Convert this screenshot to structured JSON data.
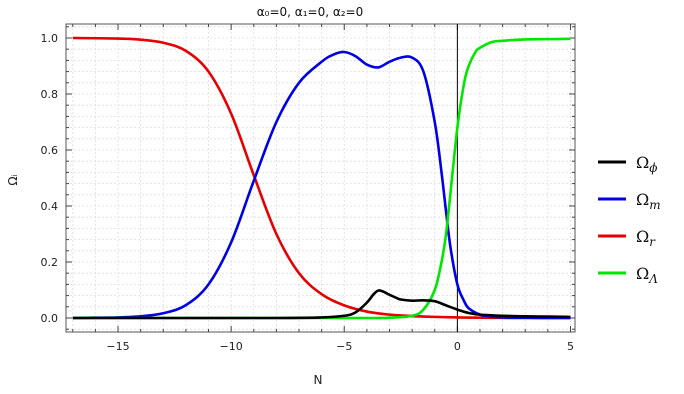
{
  "chart_data": {
    "type": "line",
    "title": "α₀=0, α₁=0, α₂=0",
    "xlabel": "N",
    "ylabel": "Ωᵢ",
    "xlim": [
      -17.3,
      5.2
    ],
    "ylim": [
      -0.05,
      1.05
    ],
    "xticks": [
      -15,
      -10,
      -5,
      0,
      5
    ],
    "xtick_labels": [
      "−15",
      "−10",
      "−5",
      "0",
      "5"
    ],
    "yticks": [
      0.0,
      0.2,
      0.4,
      0.6,
      0.8,
      1.0
    ],
    "ytick_labels": [
      "0.0",
      "0.2",
      "0.4",
      "0.6",
      "0.8",
      "1.0"
    ],
    "grid": true,
    "legend_position": "right",
    "vertical_line_x": 0,
    "series": [
      {
        "name": "Ωφ",
        "label_base": "Ω",
        "label_sub": "ϕ",
        "color": "#000000",
        "x": [
          -17,
          -12,
          -8,
          -6,
          -5,
          -4.5,
          -4,
          -3.7,
          -3.5,
          -3.3,
          -3,
          -2.7,
          -2.5,
          -2,
          -1.5,
          -1,
          -0.5,
          0,
          0.5,
          1,
          2,
          3,
          4,
          5
        ],
        "y": [
          0,
          0,
          0,
          0.002,
          0.008,
          0.02,
          0.055,
          0.085,
          0.098,
          0.095,
          0.083,
          0.072,
          0.066,
          0.062,
          0.063,
          0.06,
          0.045,
          0.03,
          0.018,
          0.012,
          0.008,
          0.006,
          0.005,
          0.004
        ]
      },
      {
        "name": "Ωm",
        "label_base": "Ω",
        "label_sub": "m",
        "color": "#0000e6",
        "x": [
          -17,
          -16,
          -15,
          -14,
          -13,
          -12,
          -11,
          -10,
          -9,
          -8,
          -7,
          -6,
          -5.5,
          -5,
          -4.5,
          -4,
          -3.5,
          -3,
          -2.5,
          -2,
          -1.5,
          -1,
          -0.7,
          -0.5,
          -0.3,
          0,
          0.3,
          0.5,
          1,
          1.5,
          2,
          3,
          5
        ],
        "y": [
          0,
          0.001,
          0.002,
          0.006,
          0.017,
          0.046,
          0.12,
          0.27,
          0.49,
          0.7,
          0.84,
          0.915,
          0.94,
          0.95,
          0.935,
          0.905,
          0.895,
          0.915,
          0.93,
          0.93,
          0.88,
          0.7,
          0.52,
          0.38,
          0.25,
          0.12,
          0.06,
          0.035,
          0.012,
          0.005,
          0.002,
          0.001,
          0
        ]
      },
      {
        "name": "Ωr",
        "label_base": "Ω",
        "label_sub": "r",
        "color": "#e60000",
        "x": [
          -17,
          -15,
          -14,
          -13,
          -12,
          -11,
          -10,
          -9,
          -8,
          -7,
          -6,
          -5,
          -4,
          -3,
          -2,
          -1,
          0,
          1,
          3,
          5
        ],
        "y": [
          1,
          0.998,
          0.994,
          0.983,
          0.954,
          0.88,
          0.73,
          0.51,
          0.3,
          0.16,
          0.085,
          0.045,
          0.023,
          0.012,
          0.007,
          0.004,
          0.002,
          0.001,
          0,
          0
        ]
      },
      {
        "name": "ΩΛ",
        "label_base": "Ω",
        "label_sub": "Λ",
        "color": "#00e600",
        "x": [
          -17,
          -5,
          -3,
          -2,
          -1.5,
          -1,
          -0.7,
          -0.5,
          -0.3,
          0,
          0.3,
          0.5,
          0.8,
          1,
          1.5,
          2,
          3,
          4,
          5
        ],
        "y": [
          0,
          0,
          0.001,
          0.008,
          0.03,
          0.1,
          0.2,
          0.3,
          0.45,
          0.68,
          0.84,
          0.9,
          0.95,
          0.965,
          0.985,
          0.99,
          0.995,
          0.996,
          0.997
        ]
      }
    ]
  }
}
